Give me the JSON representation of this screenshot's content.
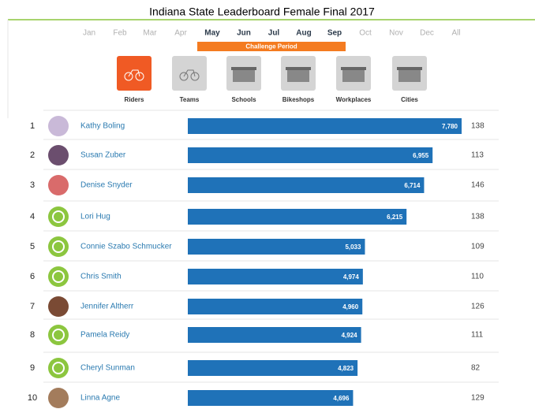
{
  "header": {
    "title": "Indiana State Leaderboard Female Final 2017"
  },
  "months": [
    "Jan",
    "Feb",
    "Mar",
    "Apr",
    "May",
    "Jun",
    "Jul",
    "Aug",
    "Sep",
    "Oct",
    "Nov",
    "Dec",
    "All"
  ],
  "active_months": [
    "May",
    "Jun",
    "Jul",
    "Aug",
    "Sep"
  ],
  "challenge_label": "Challenge Period",
  "tabs": [
    "Riders",
    "Teams",
    "Schools",
    "Bikeshops",
    "Workplaces",
    "Cities"
  ],
  "selected_tab": "Riders",
  "rows": [
    {
      "rank": 1,
      "name": "Kathy Boling",
      "points": 7780,
      "points_label": "7,780",
      "count": 138
    },
    {
      "rank": 2,
      "name": "Susan Zuber",
      "points": 6955,
      "points_label": "6,955",
      "count": 113
    },
    {
      "rank": 3,
      "name": "Denise Snyder",
      "points": 6714,
      "points_label": "6,714",
      "count": 146
    },
    {
      "rank": 4,
      "name": "Lori Hug",
      "points": 6215,
      "points_label": "6,215",
      "count": 138
    },
    {
      "rank": 5,
      "name": "Connie Szabo Schmucker",
      "points": 5033,
      "points_label": "5,033",
      "count": 109
    },
    {
      "rank": 6,
      "name": "Chris Smith",
      "points": 4974,
      "points_label": "4,974",
      "count": 110
    },
    {
      "rank": 7,
      "name": "Jennifer Altherr",
      "points": 4960,
      "points_label": "4,960",
      "count": 126
    },
    {
      "rank": 8,
      "name": "Pamela Reidy",
      "points": 4924,
      "points_label": "4,924",
      "count": 111
    },
    {
      "rank": 9,
      "name": "Cheryl Sunman",
      "points": 4823,
      "points_label": "4,823",
      "count": 82
    },
    {
      "rank": 10,
      "name": "Linna Agne",
      "points": 4696,
      "points_label": "4,696",
      "count": 129
    }
  ]
}
